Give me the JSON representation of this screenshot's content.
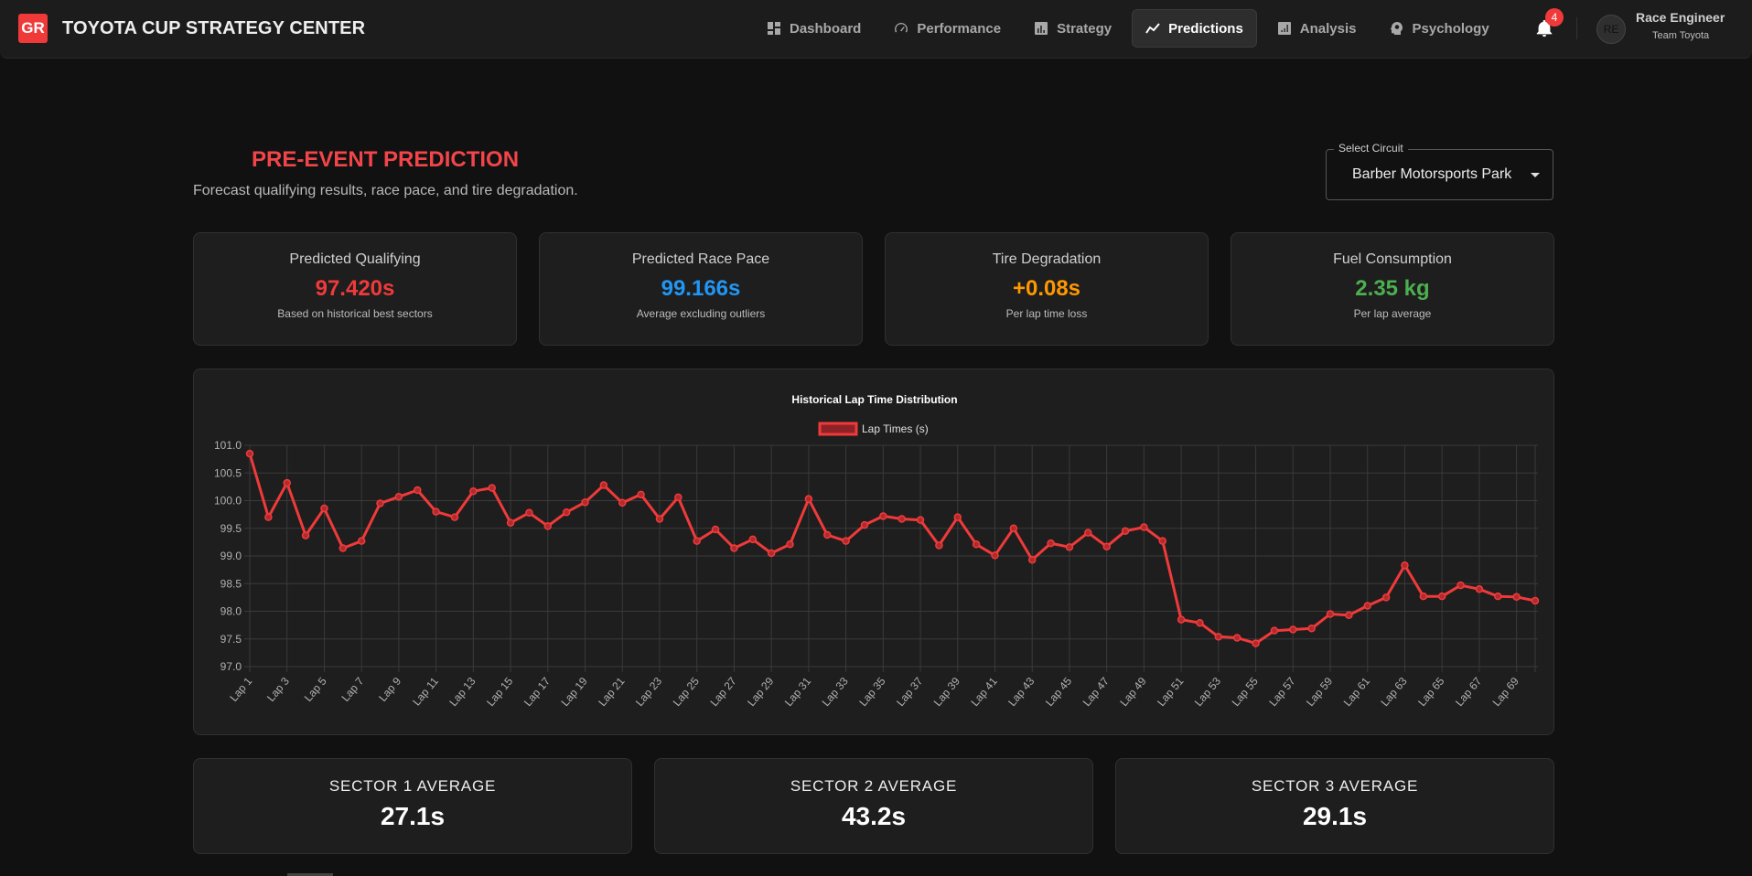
{
  "header": {
    "logo": "GR",
    "title": "TOYOTA CUP STRATEGY CENTER",
    "nav": [
      {
        "label": "Dashboard",
        "icon": "dashboard-icon",
        "active": false
      },
      {
        "label": "Performance",
        "icon": "speedometer-icon",
        "active": false
      },
      {
        "label": "Strategy",
        "icon": "bar-chart-icon",
        "active": false
      },
      {
        "label": "Predictions",
        "icon": "trending-line-icon",
        "active": true
      },
      {
        "label": "Analysis",
        "icon": "analytics-icon",
        "active": false
      },
      {
        "label": "Psychology",
        "icon": "brain-head-icon",
        "active": false
      }
    ],
    "notifications_count": "4",
    "user": {
      "initials": "RE",
      "name": "Race Engineer",
      "team": "Team Toyota"
    }
  },
  "page": {
    "title": "PRE-EVENT PREDICTION",
    "subtitle": "Forecast qualifying results, race pace, and tire degradation.",
    "circuit_select": {
      "label": "Select Circuit",
      "value": "Barber Motorsports Park"
    }
  },
  "kpis": [
    {
      "title": "Predicted Qualifying",
      "value": "97.420s",
      "sub": "Based on historical best sectors",
      "color": "#f03a3a"
    },
    {
      "title": "Predicted Race Pace",
      "value": "99.166s",
      "sub": "Average excluding outliers",
      "color": "#2196f3"
    },
    {
      "title": "Tire Degradation",
      "value": "+0.08s",
      "sub": "Per lap time loss",
      "color": "#ff9800"
    },
    {
      "title": "Fuel Consumption",
      "value": "2.35 kg",
      "sub": "Per lap average",
      "color": "#4caf50"
    }
  ],
  "sectors": [
    {
      "title": "SECTOR 1 AVERAGE",
      "value": "27.1s"
    },
    {
      "title": "SECTOR 2 AVERAGE",
      "value": "43.2s"
    },
    {
      "title": "SECTOR 3 AVERAGE",
      "value": "29.1s"
    }
  ],
  "chart_data": {
    "type": "line",
    "title": "Historical Lap Time Distribution",
    "legend": {
      "label": "Lap Times (s)",
      "position": "top"
    },
    "series_color": "#f03a3a",
    "xlabel": "",
    "ylabel": "",
    "ylim": [
      97.0,
      101.0
    ],
    "yticks": [
      "101.0",
      "100.5",
      "100.0",
      "99.5",
      "99.0",
      "98.5",
      "98.0",
      "97.5",
      "97.0"
    ],
    "grid": true,
    "x": [
      "Lap 1",
      "Lap 2",
      "Lap 3",
      "Lap 4",
      "Lap 5",
      "Lap 6",
      "Lap 7",
      "Lap 8",
      "Lap 9",
      "Lap 10",
      "Lap 11",
      "Lap 12",
      "Lap 13",
      "Lap 14",
      "Lap 15",
      "Lap 16",
      "Lap 17",
      "Lap 18",
      "Lap 19",
      "Lap 20",
      "Lap 21",
      "Lap 22",
      "Lap 23",
      "Lap 24",
      "Lap 25",
      "Lap 26",
      "Lap 27",
      "Lap 28",
      "Lap 29",
      "Lap 30",
      "Lap 31",
      "Lap 32",
      "Lap 33",
      "Lap 34",
      "Lap 35",
      "Lap 36",
      "Lap 37",
      "Lap 38",
      "Lap 39",
      "Lap 40",
      "Lap 41",
      "Lap 42",
      "Lap 43",
      "Lap 44",
      "Lap 45",
      "Lap 46",
      "Lap 47",
      "Lap 48",
      "Lap 49",
      "Lap 50",
      "Lap 51",
      "Lap 52",
      "Lap 53",
      "Lap 54",
      "Lap 55",
      "Lap 56",
      "Lap 57",
      "Lap 58",
      "Lap 59",
      "Lap 60",
      "Lap 61",
      "Lap 62",
      "Lap 63",
      "Lap 64",
      "Lap 65",
      "Lap 66",
      "Lap 67",
      "Lap 68",
      "Lap 69",
      "Lap 70"
    ],
    "values": [
      100.85,
      99.7,
      100.32,
      99.37,
      99.86,
      99.14,
      99.27,
      99.95,
      100.07,
      100.19,
      99.8,
      99.7,
      100.17,
      100.23,
      99.6,
      99.78,
      99.54,
      99.79,
      99.97,
      100.28,
      99.96,
      100.11,
      99.67,
      100.06,
      99.27,
      99.48,
      99.14,
      99.3,
      99.05,
      99.21,
      100.03,
      99.38,
      99.27,
      99.56,
      99.72,
      99.67,
      99.65,
      99.19,
      99.7,
      99.21,
      99.01,
      99.5,
      98.93,
      99.23,
      99.16,
      99.42,
      99.17,
      99.45,
      99.52,
      99.27,
      97.85,
      97.79,
      97.54,
      97.52,
      97.42,
      97.65,
      97.67,
      97.69,
      97.95,
      97.93,
      98.1,
      98.25,
      98.83,
      98.27,
      98.27,
      98.47,
      98.4,
      98.27,
      98.26,
      98.19
    ]
  }
}
